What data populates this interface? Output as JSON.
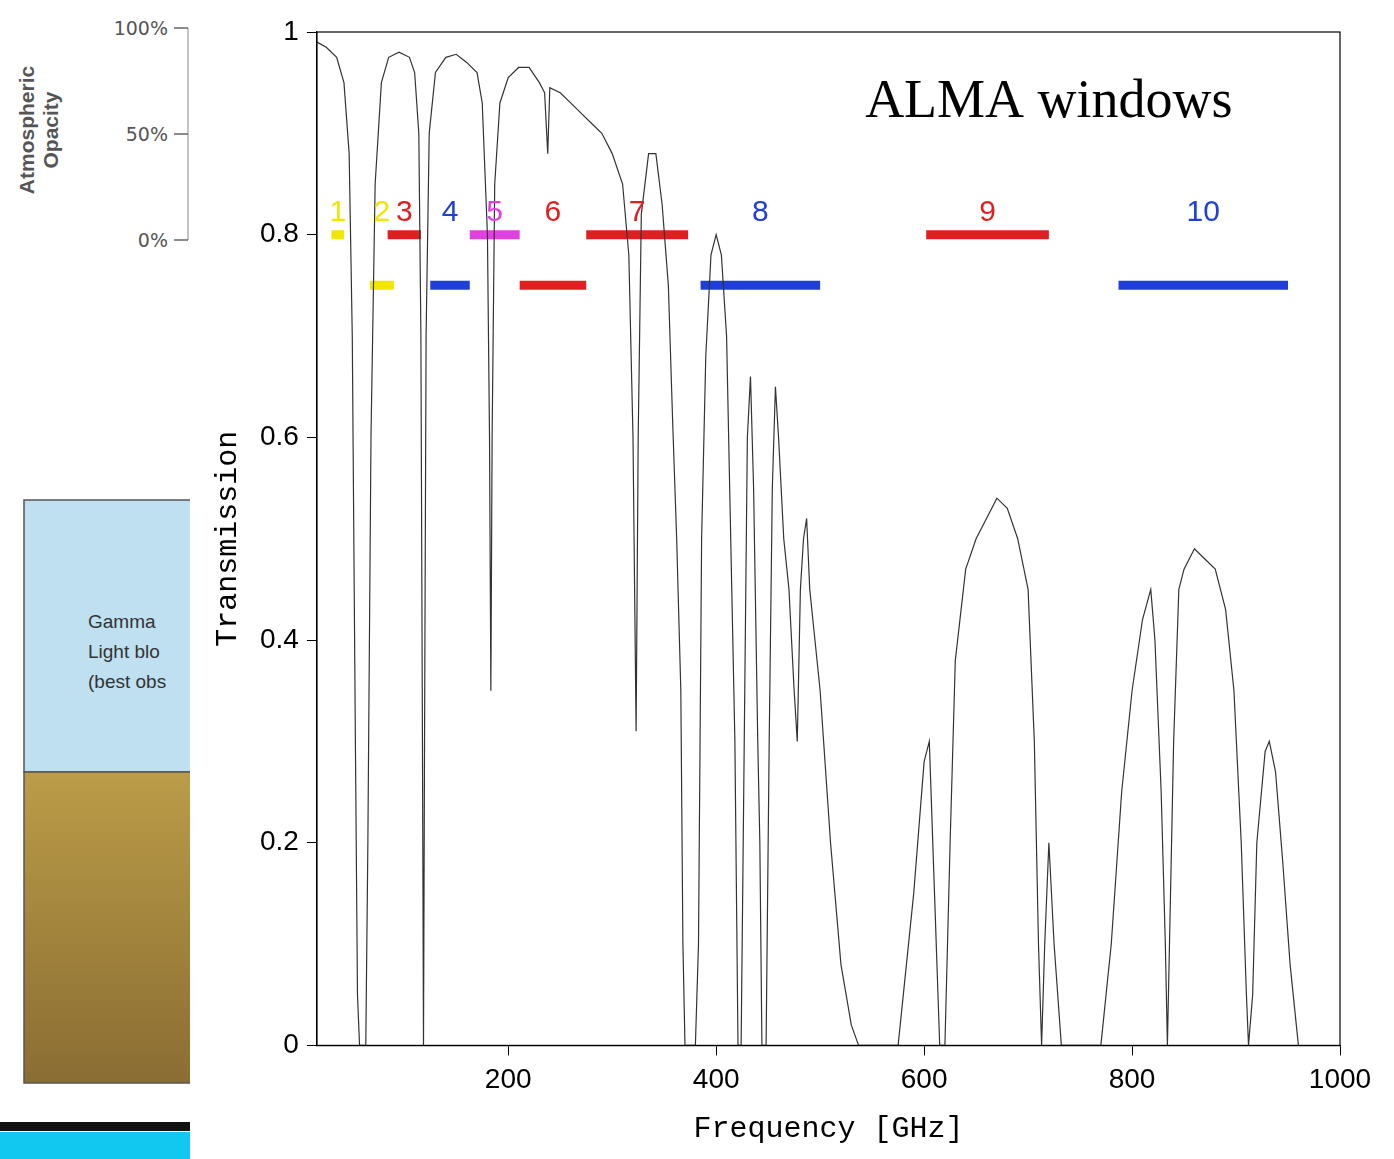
{
  "chart_data": {
    "type": "line",
    "x_label": "Frequency [GHz]",
    "y_label": "Transmission",
    "color": "#333333",
    "grid": false,
    "xlim": [
      16,
      1000
    ],
    "xticks": [
      200,
      400,
      600,
      800,
      1000
    ],
    "ylim": [
      0,
      1
    ],
    "yticks": [
      0,
      0.2,
      0.4,
      0.6,
      0.8,
      1
    ],
    "annotations": [
      {
        "text": "ALMA windows",
        "x": 720,
        "y": 0.93
      }
    ],
    "x": [
      16,
      25,
      35,
      42,
      47,
      50,
      53,
      55,
      57,
      63,
      65,
      68,
      72,
      78,
      85,
      95,
      105,
      110,
      114,
      116,
      117.5,
      118.5,
      119.5,
      121,
      124,
      130,
      140,
      150,
      160,
      170,
      175,
      180,
      182,
      183.3,
      184.5,
      187,
      192,
      200,
      210,
      220,
      230,
      235,
      238,
      240,
      250,
      260,
      270,
      280,
      290,
      300,
      310,
      316,
      320,
      323,
      325,
      328,
      335,
      342,
      348,
      354,
      358,
      362,
      366,
      368,
      370,
      380,
      383,
      386,
      390,
      395,
      400,
      405,
      410,
      414,
      418,
      421,
      424,
      427,
      430,
      433,
      436,
      440,
      442,
      444,
      448,
      451,
      454,
      457,
      460,
      465,
      470,
      475,
      478,
      481,
      484,
      487,
      490,
      495,
      500,
      510,
      520,
      530,
      537,
      575,
      590,
      600,
      605,
      610,
      615,
      620,
      625,
      630,
      640,
      650,
      660,
      670,
      680,
      690,
      700,
      706,
      710,
      713,
      716,
      720,
      725,
      732,
      770,
      780,
      790,
      800,
      810,
      818,
      822,
      828,
      832,
      834,
      836,
      840,
      845,
      850,
      860,
      870,
      880,
      890,
      898,
      905,
      910,
      912,
      916,
      920,
      928,
      932,
      938,
      945,
      952,
      960
    ],
    "values": [
      0.99,
      0.985,
      0.975,
      0.95,
      0.88,
      0.7,
      0.3,
      0.05,
      0,
      0,
      0.2,
      0.6,
      0.85,
      0.95,
      0.975,
      0.98,
      0.975,
      0.96,
      0.9,
      0.7,
      0.3,
      0,
      0.3,
      0.7,
      0.9,
      0.96,
      0.975,
      0.978,
      0.97,
      0.96,
      0.93,
      0.8,
      0.6,
      0.35,
      0.6,
      0.85,
      0.93,
      0.955,
      0.965,
      0.965,
      0.95,
      0.94,
      0.88,
      0.945,
      0.94,
      0.93,
      0.92,
      0.91,
      0.9,
      0.88,
      0.85,
      0.78,
      0.6,
      0.31,
      0.6,
      0.82,
      0.88,
      0.88,
      0.83,
      0.75,
      0.62,
      0.5,
      0.35,
      0.1,
      0,
      0,
      0.1,
      0.5,
      0.68,
      0.78,
      0.8,
      0.78,
      0.7,
      0.5,
      0.3,
      0,
      0,
      0.3,
      0.6,
      0.66,
      0.55,
      0.3,
      0.2,
      0,
      0,
      0.3,
      0.55,
      0.65,
      0.6,
      0.5,
      0.45,
      0.35,
      0.3,
      0.45,
      0.5,
      0.52,
      0.45,
      0.4,
      0.35,
      0.2,
      0.08,
      0.02,
      0,
      0,
      0.15,
      0.28,
      0.3,
      0.15,
      0,
      0,
      0.2,
      0.38,
      0.47,
      0.5,
      0.52,
      0.54,
      0.53,
      0.5,
      0.45,
      0.3,
      0.1,
      0,
      0.1,
      0.2,
      0.1,
      0,
      0,
      0.1,
      0.25,
      0.35,
      0.42,
      0.45,
      0.4,
      0.25,
      0.1,
      0,
      0.1,
      0.3,
      0.45,
      0.47,
      0.49,
      0.48,
      0.47,
      0.43,
      0.35,
      0.2,
      0.05,
      0,
      0.05,
      0.2,
      0.29,
      0.3,
      0.27,
      0.18,
      0.08,
      0
    ],
    "bands": [
      {
        "label": "1",
        "range": [
          30,
          42
        ],
        "level": 0.8,
        "color": "#f2e600"
      },
      {
        "label": "2",
        "range": [
          67,
          90
        ],
        "level": 0.75,
        "color": "#f2e600"
      },
      {
        "label": "3",
        "range": [
          84,
          116
        ],
        "level": 0.8,
        "color": "#e02020"
      },
      {
        "label": "4",
        "range": [
          125,
          163
        ],
        "level": 0.75,
        "color": "#1f3fd6"
      },
      {
        "label": "5",
        "range": [
          163,
          211
        ],
        "level": 0.8,
        "color": "#e040e0"
      },
      {
        "label": "6",
        "range": [
          211,
          275
        ],
        "level": 0.75,
        "color": "#e02020"
      },
      {
        "label": "7",
        "range": [
          275,
          373
        ],
        "level": 0.8,
        "color": "#e02020"
      },
      {
        "label": "8",
        "range": [
          385,
          500
        ],
        "level": 0.75,
        "color": "#1f3fd6"
      },
      {
        "label": "9",
        "range": [
          602,
          720
        ],
        "level": 0.8,
        "color": "#e02020"
      },
      {
        "label": "10",
        "range": [
          787,
          950
        ],
        "level": 0.75,
        "color": "#1f3fd6"
      }
    ]
  },
  "side_panel": {
    "axis_title": "Atmospheric Opacity",
    "ylim": [
      0,
      100
    ],
    "yticks": [
      {
        "value": 100,
        "label": "100%"
      },
      {
        "value": 50,
        "label": "50%"
      },
      {
        "value": 0,
        "label": "0%"
      }
    ],
    "box_text": [
      "Gamma",
      "Light blo",
      "(best obs"
    ]
  }
}
